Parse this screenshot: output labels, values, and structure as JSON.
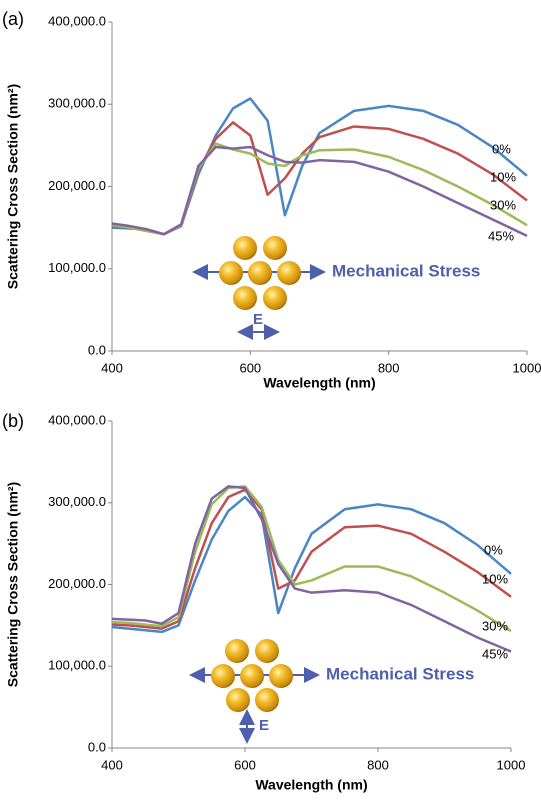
{
  "chart_data": [
    {
      "type": "line",
      "panel_label": "(a)",
      "x_label": "Wavelength (nm)",
      "y_label": "Scattering Cross Section (nm²)",
      "annotations": [
        "Mechanical Stress",
        "E"
      ],
      "x": [
        400,
        425,
        450,
        475,
        500,
        525,
        550,
        575,
        600,
        625,
        650,
        675,
        700,
        750,
        800,
        850,
        900,
        950,
        1000
      ],
      "xlim": [
        400,
        1000
      ],
      "xticks": [
        400,
        600,
        800,
        1000
      ],
      "ylim": [
        0,
        400000
      ],
      "yticks": [
        {
          "value": 0,
          "label": "0.0"
        },
        {
          "value": 100000,
          "label": "100,000.0"
        },
        {
          "value": 200000,
          "label": "200,000.0"
        },
        {
          "value": 300000,
          "label": "300,000.0"
        },
        {
          "value": 400000,
          "label": "400,000.0"
        }
      ],
      "series": [
        {
          "name": "0%",
          "color": "#4a86c5",
          "values": [
            150000,
            149000,
            148000,
            142000,
            152000,
            215000,
            262000,
            295000,
            307000,
            280000,
            165000,
            225000,
            265000,
            292000,
            298000,
            292000,
            275000,
            248000,
            213000
          ]
        },
        {
          "name": "10%",
          "color": "#c0504d",
          "values": [
            152000,
            150000,
            146000,
            142000,
            152000,
            220000,
            258000,
            278000,
            262000,
            190000,
            210000,
            240000,
            260000,
            273000,
            270000,
            258000,
            240000,
            215000,
            183000
          ]
        },
        {
          "name": "30%",
          "color": "#9bbb59",
          "values": [
            153000,
            150000,
            146000,
            142000,
            153000,
            222000,
            252000,
            245000,
            240000,
            228000,
            225000,
            238000,
            244000,
            245000,
            236000,
            220000,
            200000,
            178000,
            153000
          ]
        },
        {
          "name": "45%",
          "color": "#8064a2",
          "values": [
            155000,
            152000,
            148000,
            142000,
            154000,
            225000,
            248000,
            246000,
            248000,
            238000,
            230000,
            229000,
            232000,
            230000,
            218000,
            200000,
            180000,
            160000,
            140000
          ]
        }
      ]
    },
    {
      "type": "line",
      "panel_label": "(b)",
      "x_label": "Wavelength (nm)",
      "y_label": "Scattering Cross Section (nm²)",
      "annotations": [
        "Mechanical Stress",
        "E"
      ],
      "x": [
        400,
        425,
        450,
        475,
        500,
        525,
        550,
        575,
        600,
        625,
        650,
        675,
        700,
        750,
        800,
        850,
        900,
        950,
        1000
      ],
      "xlim": [
        400,
        1000
      ],
      "xticks": [
        400,
        600,
        800,
        1000
      ],
      "ylim": [
        0,
        400000
      ],
      "yticks": [
        {
          "value": 0,
          "label": "0.0"
        },
        {
          "value": 100000,
          "label": "100,000.0"
        },
        {
          "value": 200000,
          "label": "200,000.0"
        },
        {
          "value": 300000,
          "label": "300,000.0"
        },
        {
          "value": 400000,
          "label": "400,000.0"
        }
      ],
      "series": [
        {
          "name": "0%",
          "color": "#4a86c5",
          "values": [
            148000,
            146000,
            144000,
            142000,
            150000,
            205000,
            255000,
            290000,
            307000,
            285000,
            165000,
            220000,
            262000,
            292000,
            298000,
            292000,
            275000,
            248000,
            213000
          ]
        },
        {
          "name": "10%",
          "color": "#c0504d",
          "values": [
            151000,
            150000,
            148000,
            146000,
            155000,
            220000,
            275000,
            307000,
            316000,
            292000,
            195000,
            205000,
            240000,
            270000,
            272000,
            262000,
            240000,
            215000,
            185000
          ]
        },
        {
          "name": "30%",
          "color": "#9bbb59",
          "values": [
            154000,
            153000,
            151000,
            149000,
            160000,
            240000,
            298000,
            318000,
            320000,
            295000,
            230000,
            200000,
            205000,
            222000,
            222000,
            210000,
            190000,
            168000,
            143000
          ]
        },
        {
          "name": "45%",
          "color": "#8064a2",
          "values": [
            158000,
            157000,
            156000,
            152000,
            165000,
            250000,
            305000,
            320000,
            318000,
            280000,
            225000,
            195000,
            190000,
            193000,
            190000,
            175000,
            155000,
            135000,
            118000
          ]
        }
      ]
    }
  ]
}
